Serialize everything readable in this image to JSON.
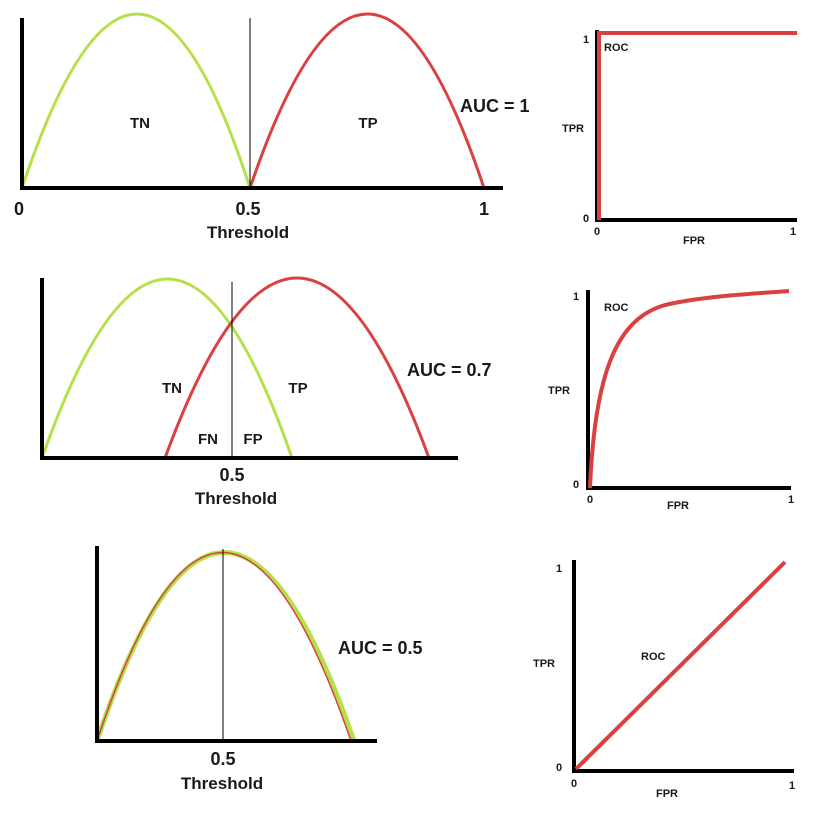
{
  "colors": {
    "negative_curve": "#b5e04a",
    "positive_curve": "#d9403f",
    "axis": "#000000",
    "roc": "#d9403f"
  },
  "panels": [
    {
      "distribution": {
        "tick_labels": [
          "0",
          "0.5",
          "1"
        ],
        "xlabel": "Threshold",
        "region_labels": {
          "tn": "TN",
          "tp": "TP"
        }
      },
      "auc_label": "AUC = 1",
      "roc": {
        "shape": "perfect-step",
        "label": "ROC",
        "xlabel": "FPR",
        "ylabel": "TPR",
        "ticks": {
          "x0": "0",
          "x1": "1",
          "y0": "0",
          "y1": "1"
        }
      }
    },
    {
      "distribution": {
        "tick_labels": [
          "0.5"
        ],
        "xlabel": "Threshold",
        "region_labels": {
          "tn": "TN",
          "tp": "TP",
          "fn": "FN",
          "fp": "FP"
        }
      },
      "auc_label": "AUC = 0.7",
      "roc": {
        "shape": "concave-curve",
        "label": "ROC",
        "xlabel": "FPR",
        "ylabel": "TPR",
        "ticks": {
          "x0": "0",
          "x1": "1",
          "y0": "0",
          "y1": "1"
        }
      }
    },
    {
      "distribution": {
        "tick_labels": [
          "0.5"
        ],
        "xlabel": "Threshold"
      },
      "auc_label": "AUC = 0.5",
      "roc": {
        "shape": "diagonal",
        "label": "ROC",
        "xlabel": "FPR",
        "ylabel": "TPR",
        "ticks": {
          "x0": "0",
          "x1": "1",
          "y0": "0",
          "y1": "1"
        }
      }
    }
  ]
}
